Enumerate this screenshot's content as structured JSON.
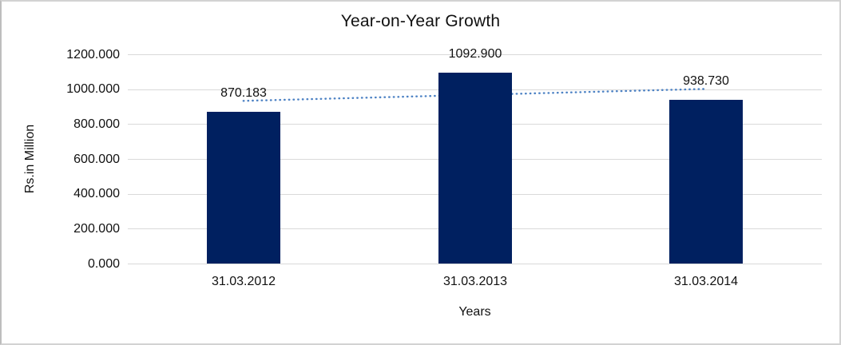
{
  "chart_data": {
    "type": "bar",
    "title": "Year-on-Year Growth",
    "xlabel": "Years",
    "ylabel": "Rs.in Million",
    "categories": [
      "31.03.2012",
      "31.03.2013",
      "31.03.2014"
    ],
    "values": [
      870.183,
      1092.9,
      938.73
    ],
    "data_labels": [
      "870.183",
      "1092.900",
      "938.730"
    ],
    "ylim": [
      0,
      1200
    ],
    "ytick_step": 200,
    "ytick_labels": [
      "0.000",
      "200.000",
      "400.000",
      "600.000",
      "800.000",
      "1000.000",
      "1200.000"
    ],
    "grid": true,
    "legend": "none",
    "colors": {
      "bar": "#002060",
      "trendline": "#4d82c4",
      "gridline": "#d9d9d9",
      "text": "#111111",
      "frame_border": "#c9c9c9",
      "background": "#ffffff"
    },
    "trendline": {
      "type": "linear",
      "style": "dotted"
    }
  }
}
